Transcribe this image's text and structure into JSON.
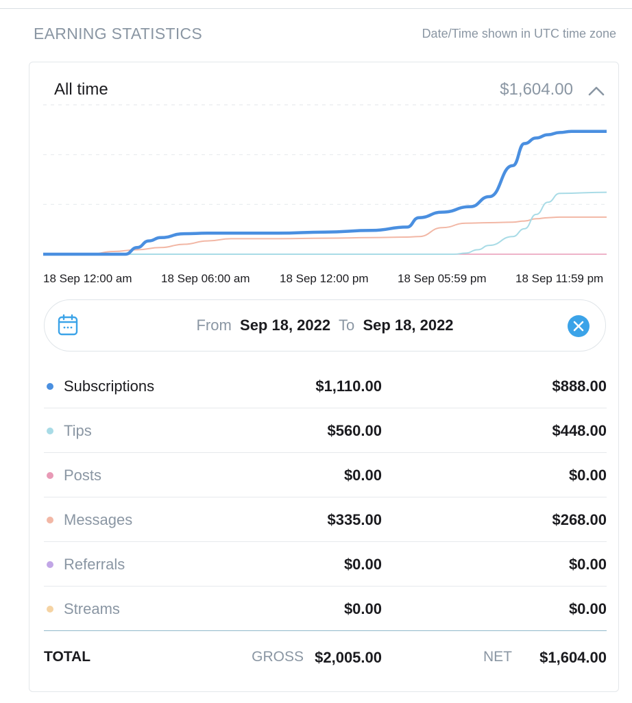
{
  "header": {
    "title": "EARNING STATISTICS",
    "timezone_note": "Date/Time shown in UTC time zone"
  },
  "period": {
    "label": "All time",
    "total": "$1,604.00",
    "collapse_icon": "chevron-up-icon"
  },
  "chart": {
    "x_ticks": [
      "18 Sep 12:00 am",
      "18 Sep 06:00 am",
      "18 Sep 12:00 pm",
      "18 Sep 05:59 pm",
      "18 Sep 11:59 pm"
    ],
    "grid": true,
    "series_colors": {
      "subscriptions": "#4a8fe0",
      "tips": "#a8dbe6",
      "messages": "#f2b7a5",
      "posts": "#e89ab6"
    }
  },
  "chart_data": {
    "type": "line",
    "x_labels": [
      "18 Sep 12:00 am",
      "18 Sep 06:00 am",
      "18 Sep 12:00 pm",
      "18 Sep 05:59 pm",
      "18 Sep 11:59 pm"
    ],
    "x_hours": [
      0,
      6,
      12,
      17.98,
      23.98
    ],
    "series": [
      {
        "key": "subscriptions",
        "x": [
          0,
          3.5,
          4,
          4.5,
          5,
          6,
          7,
          8,
          10,
          12,
          14,
          15.5,
          16,
          17,
          18.2,
          19,
          20,
          20.5,
          21,
          21.5,
          22,
          22.5,
          24
        ],
        "values": [
          0,
          0,
          60,
          120,
          150,
          185,
          190,
          190,
          190,
          200,
          215,
          245,
          330,
          380,
          430,
          520,
          800,
          1000,
          1050,
          1080,
          1100,
          1110,
          1110
        ]
      },
      {
        "key": "tips",
        "x": [
          0,
          17.5,
          18,
          18.5,
          19,
          20,
          20.5,
          21,
          21.5,
          22,
          24
        ],
        "values": [
          0,
          0,
          10,
          40,
          80,
          160,
          230,
          360,
          470,
          550,
          560
        ]
      },
      {
        "key": "messages",
        "x": [
          0,
          2,
          3,
          4,
          5,
          6,
          7,
          8,
          10,
          12,
          14,
          15.5,
          16,
          17,
          18,
          19,
          20,
          20.5,
          21,
          21.5,
          22,
          24
        ],
        "values": [
          0,
          0,
          25,
          40,
          60,
          90,
          120,
          140,
          140,
          145,
          150,
          155,
          160,
          240,
          280,
          285,
          290,
          300,
          320,
          330,
          335,
          335
        ]
      },
      {
        "key": "posts",
        "x": [
          0,
          24
        ],
        "values": [
          0,
          0
        ]
      }
    ],
    "ylim": [
      0,
      1350
    ]
  },
  "date_range": {
    "calendar_icon": "calendar-icon",
    "from_label": "From",
    "from_date": "Sep 18, 2022",
    "to_label": "To",
    "to_date": "Sep 18, 2022",
    "clear_icon": "close-circle-icon"
  },
  "breakdown": [
    {
      "label": "Subscriptions",
      "gross": "$1,110.00",
      "net": "$888.00",
      "color": "#4a8fe0",
      "text_color": "#1b1b1f"
    },
    {
      "label": "Tips",
      "gross": "$560.00",
      "net": "$448.00",
      "color": "#a8dbe6",
      "text_color": "#8a96a3"
    },
    {
      "label": "Posts",
      "gross": "$0.00",
      "net": "$0.00",
      "color": "#e89ab6",
      "text_color": "#8a96a3"
    },
    {
      "label": "Messages",
      "gross": "$335.00",
      "net": "$268.00",
      "color": "#f2b7a5",
      "text_color": "#8a96a3"
    },
    {
      "label": "Referrals",
      "gross": "$0.00",
      "net": "$0.00",
      "color": "#c1a6e6",
      "text_color": "#8a96a3"
    },
    {
      "label": "Streams",
      "gross": "$0.00",
      "net": "$0.00",
      "color": "#f5d3a3",
      "text_color": "#8a96a3"
    }
  ],
  "totals": {
    "label": "TOTAL",
    "gross_label": "GROSS",
    "gross_value": "$2,005.00",
    "net_label": "NET",
    "net_value": "$1,604.00"
  }
}
